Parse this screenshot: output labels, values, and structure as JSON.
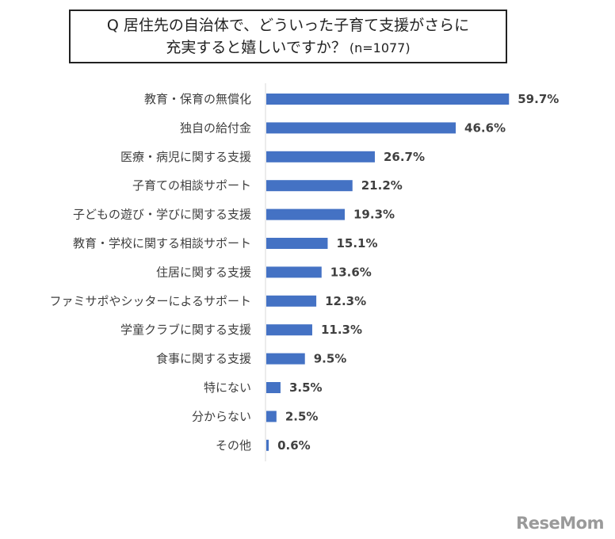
{
  "chart_data": {
    "type": "bar",
    "orientation": "horizontal",
    "title_line1": "Q 居住先の自治体で、どういった子育て支援がさらに",
    "title_line2": "充実すると嬉しいですか？",
    "title_n": "(n=1077)",
    "categories": [
      "教育・保育の無償化",
      "独自の給付金",
      "医療・病児に関する支援",
      "子育ての相談サポート",
      "子どもの遊び・学びに関する支援",
      "教育・学校に関する相談サポート",
      "住居に関する支援",
      "ファミサポやシッターによるサポート",
      "学童クラブに関する支援",
      "食事に関する支援",
      "特にない",
      "分からない",
      "その他"
    ],
    "values": [
      59.7,
      46.6,
      26.7,
      21.2,
      19.3,
      15.1,
      13.6,
      12.3,
      11.3,
      9.5,
      3.5,
      2.5,
      0.6
    ],
    "value_labels": [
      "59.7%",
      "46.6%",
      "26.7%",
      "21.2%",
      "19.3%",
      "15.1%",
      "13.6%",
      "12.3%",
      "11.3%",
      "9.5%",
      "3.5%",
      "2.5%",
      "0.6%"
    ],
    "unit": "%",
    "bar_color": "#4472c4",
    "axis_color": "#d9d9d9",
    "grid": false,
    "legend": "none"
  },
  "watermark": "ReseMom"
}
